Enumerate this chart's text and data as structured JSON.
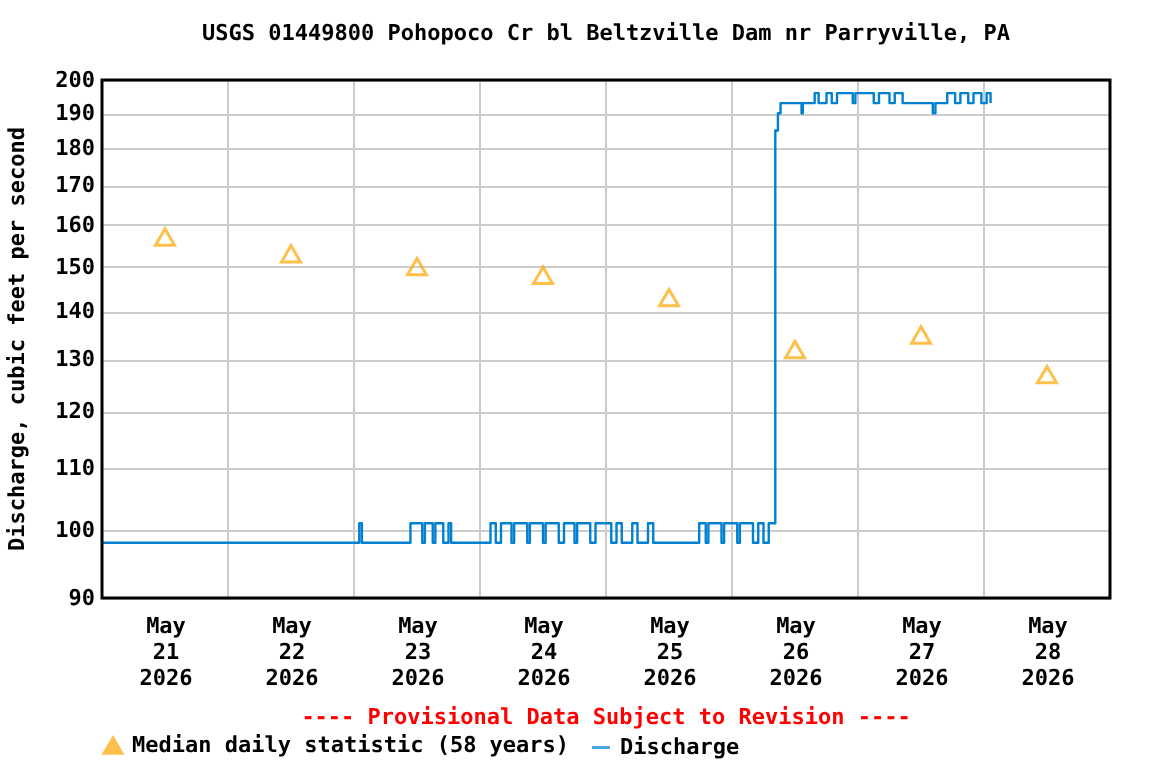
{
  "chart_data": {
    "type": "scatter",
    "title": "USGS 01449800 Pohopoco Cr bl Beltzville Dam nr Parryville, PA",
    "ylabel": "Discharge, cubic feet per second",
    "annotations": [
      "---- Provisional Data Subject to Revision ----"
    ],
    "log": "y",
    "grid": true,
    "legend": "bottom left",
    "xlim": [
      "2026-05-21T00:00",
      "2026-05-29T00:00"
    ],
    "xticks": [
      {
        "value": "2026-05-22T00:00",
        "label": null
      },
      {
        "value": "2026-05-23T00:00",
        "label": null
      },
      {
        "value": "2026-05-24T00:00",
        "label": null
      },
      {
        "value": "2026-05-25T00:00",
        "label": null
      },
      {
        "value": "2026-05-26T00:00",
        "label": null
      },
      {
        "value": "2026-05-27T00:00",
        "label": null
      },
      {
        "value": "2026-05-28T00:00",
        "label": null
      },
      {
        "value": "2026-05-21T12:00",
        "label": "May\n21\n2026"
      },
      {
        "value": "2026-05-22T12:00",
        "label": "May\n22\n2026"
      },
      {
        "value": "2026-05-23T12:00",
        "label": "May\n23\n2026"
      },
      {
        "value": "2026-05-24T12:00",
        "label": "May\n24\n2026"
      },
      {
        "value": "2026-05-25T12:00",
        "label": "May\n25\n2026"
      },
      {
        "value": "2026-05-26T12:00",
        "label": "May\n26\n2026"
      },
      {
        "value": "2026-05-27T12:00",
        "label": "May\n27\n2026"
      },
      {
        "value": "2026-05-28T12:00",
        "label": "May\n28\n2026"
      }
    ],
    "ylim": [
      90,
      200
    ],
    "yticks": [
      90,
      100,
      110,
      120,
      130,
      140,
      150,
      160,
      170,
      180,
      190,
      200
    ],
    "series": [
      {
        "name": "Median daily statistic (58 years)",
        "type": "scatter",
        "marker": "triangle",
        "color": "#ffa500",
        "x": [
          "2026-05-21T12:00",
          "2026-05-22T12:00",
          "2026-05-23T12:00",
          "2026-05-24T12:00",
          "2026-05-25T12:00",
          "2026-05-26T12:00",
          "2026-05-27T12:00",
          "2026-05-28T12:00"
        ],
        "values": [
          157,
          153,
          150,
          148,
          143,
          132,
          135,
          127
        ]
      },
      {
        "name": "Discharge",
        "type": "step",
        "color": "#0080d0",
        "x": [
          "2026-05-21T00:00",
          "2026-05-23T01:00",
          "2026-05-23T01:30",
          "2026-05-23T10:45",
          "2026-05-23T13:00",
          "2026-05-23T13:30",
          "2026-05-23T15:00",
          "2026-05-23T15:30",
          "2026-05-23T17:00",
          "2026-05-23T18:00",
          "2026-05-23T18:30",
          "2026-05-24T02:00",
          "2026-05-24T03:00",
          "2026-05-24T04:00",
          "2026-05-24T06:00",
          "2026-05-24T06:30",
          "2026-05-24T09:00",
          "2026-05-24T09:30",
          "2026-05-24T12:00",
          "2026-05-24T12:30",
          "2026-05-24T15:00",
          "2026-05-24T16:00",
          "2026-05-24T18:00",
          "2026-05-24T18:30",
          "2026-05-24T21:00",
          "2026-05-24T22:00",
          "2026-05-25T01:00",
          "2026-05-25T02:00",
          "2026-05-25T03:00",
          "2026-05-25T05:00",
          "2026-05-25T06:00",
          "2026-05-25T08:00",
          "2026-05-25T09:00",
          "2026-05-25T17:45",
          "2026-05-25T19:00",
          "2026-05-25T19:30",
          "2026-05-25T22:00",
          "2026-05-25T22:30",
          "2026-05-26T01:00",
          "2026-05-26T01:30",
          "2026-05-26T04:00",
          "2026-05-26T05:00",
          "2026-05-26T06:00",
          "2026-05-26T07:00",
          "2026-05-26T08:15",
          "2026-05-26T08:45",
          "2026-05-26T09:15",
          "2026-05-26T13:15",
          "2026-05-26T13:30",
          "2026-05-26T15:45",
          "2026-05-26T16:30",
          "2026-05-26T18:00",
          "2026-05-26T19:00",
          "2026-05-26T20:00",
          "2026-05-26T23:00",
          "2026-05-26T23:30",
          "2026-05-27T03:00",
          "2026-05-27T04:00",
          "2026-05-27T06:00",
          "2026-05-27T07:00",
          "2026-05-27T08:30",
          "2026-05-27T14:15",
          "2026-05-27T14:45",
          "2026-05-27T17:00",
          "2026-05-27T18:30",
          "2026-05-27T19:30",
          "2026-05-27T21:00",
          "2026-05-27T22:00",
          "2026-05-27T23:30",
          "2026-05-28T00:30",
          "2026-05-28T01:15"
        ],
        "values": [
          98,
          101,
          98,
          101,
          98,
          101,
          98,
          101,
          98,
          101,
          98,
          101,
          98,
          101,
          98,
          101,
          98,
          101,
          98,
          101,
          98,
          101,
          98,
          101,
          98,
          101,
          98,
          101,
          98,
          101,
          98,
          101,
          98,
          101,
          98,
          101,
          98,
          101,
          98,
          101,
          98,
          101,
          98,
          101,
          185,
          190,
          193,
          190,
          193,
          196,
          193,
          196,
          193,
          196,
          193,
          196,
          193,
          196,
          193,
          196,
          193,
          190,
          193,
          196,
          193,
          196,
          193,
          196,
          193,
          196,
          193
        ]
      }
    ]
  }
}
